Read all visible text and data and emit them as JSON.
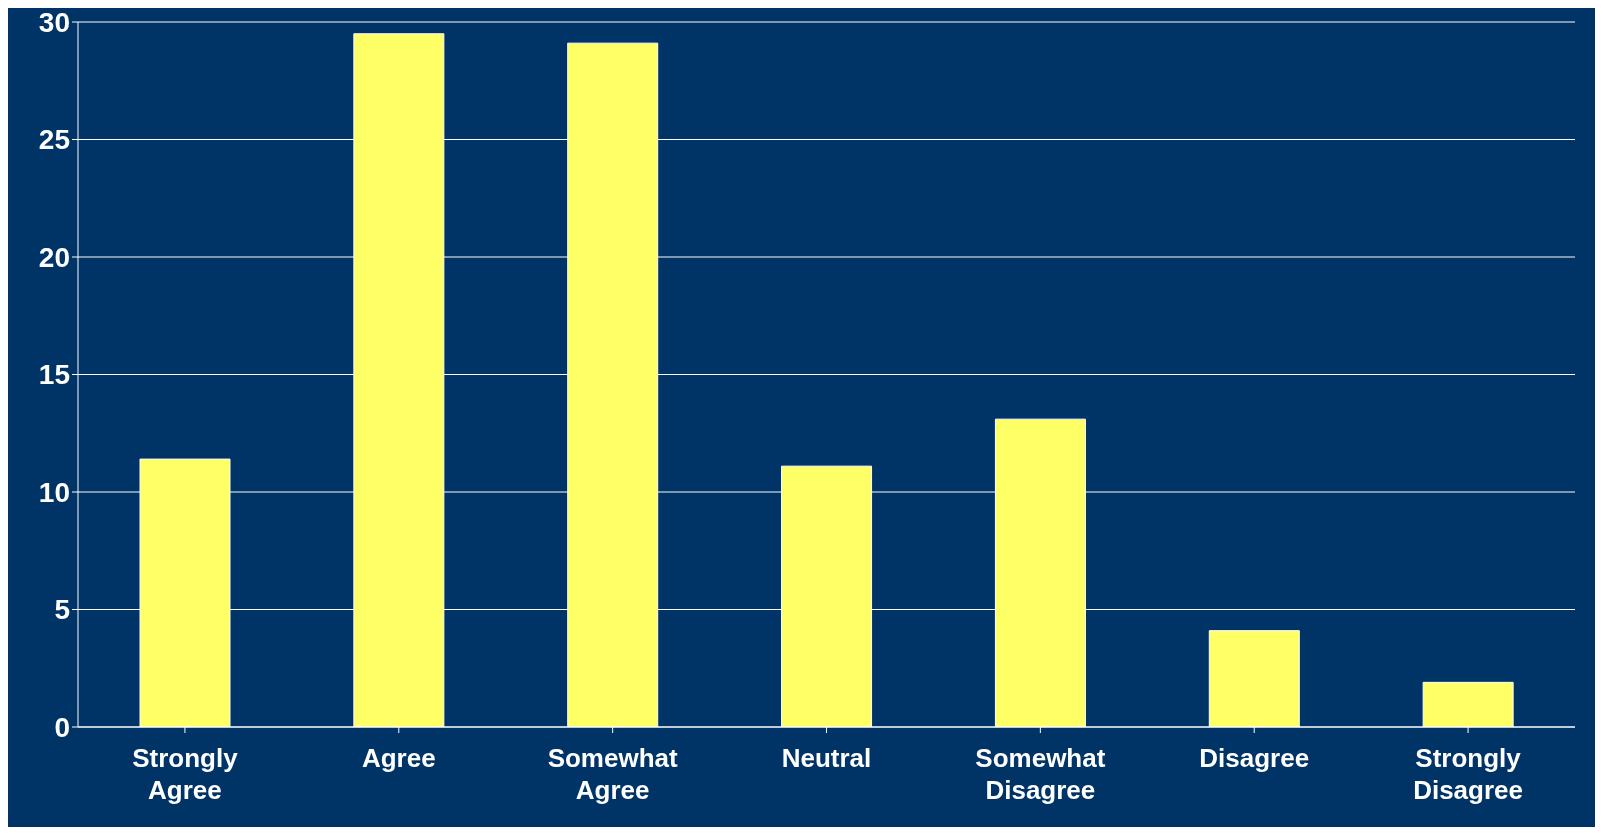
{
  "chart_data": {
    "type": "bar",
    "categories": [
      "Strongly Agree",
      "Agree",
      "Somewhat Agree",
      "Neutral",
      "Somewhat Disagree",
      "Disagree",
      "Strongly Disagree"
    ],
    "values": [
      11.4,
      29.5,
      29.1,
      11.1,
      13.1,
      4.1,
      1.9
    ],
    "color": "#ffff66",
    "ylim": [
      0,
      30
    ],
    "yticks": [
      0,
      5,
      10,
      15,
      20,
      25,
      30
    ],
    "grid": "y"
  }
}
